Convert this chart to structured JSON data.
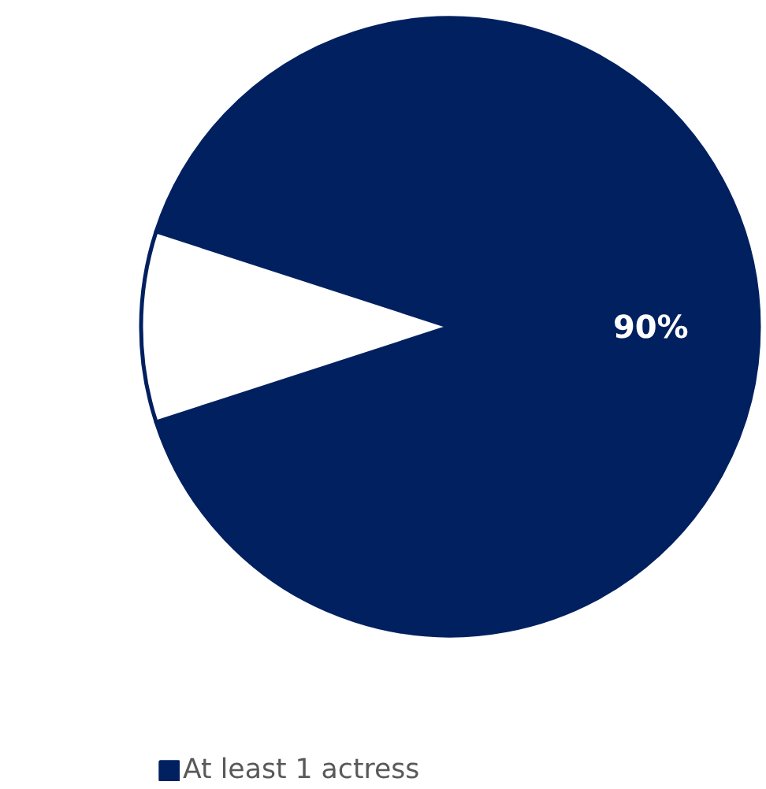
{
  "chart_data": {
    "type": "pie",
    "categories": [
      "At least 1 actress",
      null
    ],
    "values": [
      90,
      10
    ],
    "colors": [
      "#002060",
      "#ffffff"
    ],
    "value_labels": [
      "90%",
      null
    ],
    "legend": "bottom"
  }
}
